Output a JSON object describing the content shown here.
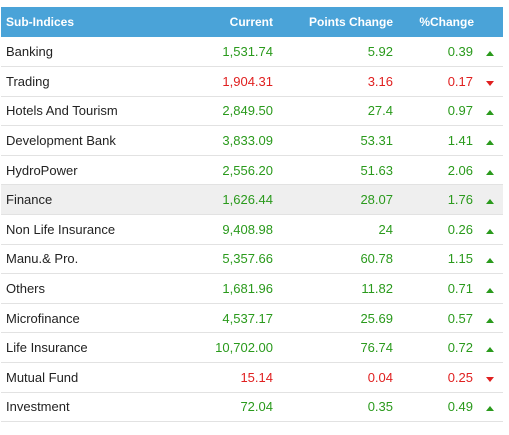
{
  "headers": {
    "name": "Sub-Indices",
    "current": "Current",
    "points": "Points Change",
    "percent": "%Change"
  },
  "colors": {
    "header_bg": "#4aa3d8",
    "up": "#2a9a1c",
    "down": "#e02020"
  },
  "rows": [
    {
      "name": "Banking",
      "current": "1,531.74",
      "points": "5.92",
      "percent": "0.39",
      "dir": "up"
    },
    {
      "name": "Trading",
      "current": "1,904.31",
      "points": "3.16",
      "percent": "0.17",
      "dir": "down"
    },
    {
      "name": "Hotels And Tourism",
      "current": "2,849.50",
      "points": "27.4",
      "percent": "0.97",
      "dir": "up"
    },
    {
      "name": "Development Bank",
      "current": "3,833.09",
      "points": "53.31",
      "percent": "1.41",
      "dir": "up"
    },
    {
      "name": "HydroPower",
      "current": "2,556.20",
      "points": "51.63",
      "percent": "2.06",
      "dir": "up"
    },
    {
      "name": "Finance",
      "current": "1,626.44",
      "points": "28.07",
      "percent": "1.76",
      "dir": "up"
    },
    {
      "name": "Non Life Insurance",
      "current": "9,408.98",
      "points": "24",
      "percent": "0.26",
      "dir": "up"
    },
    {
      "name": "Manu.& Pro.",
      "current": "5,357.66",
      "points": "60.78",
      "percent": "1.15",
      "dir": "up"
    },
    {
      "name": "Others",
      "current": "1,681.96",
      "points": "11.82",
      "percent": "0.71",
      "dir": "up"
    },
    {
      "name": "Microfinance",
      "current": "4,537.17",
      "points": "25.69",
      "percent": "0.57",
      "dir": "up"
    },
    {
      "name": "Life Insurance",
      "current": "10,702.00",
      "points": "76.74",
      "percent": "0.72",
      "dir": "up"
    },
    {
      "name": "Mutual Fund",
      "current": "15.14",
      "points": "0.04",
      "percent": "0.25",
      "dir": "down"
    },
    {
      "name": "Investment",
      "current": "72.04",
      "points": "0.35",
      "percent": "0.49",
      "dir": "up"
    }
  ]
}
